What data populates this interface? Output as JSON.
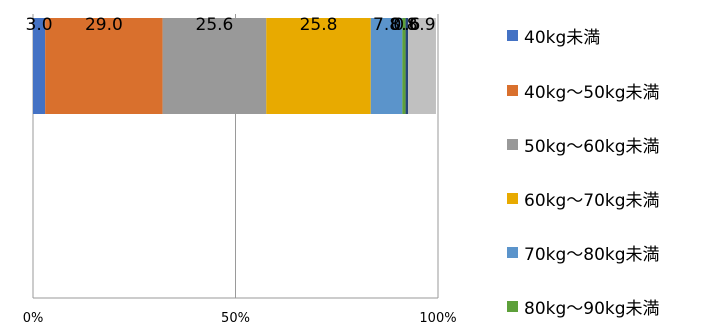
{
  "chart_data": {
    "type": "bar",
    "orientation": "horizontal",
    "stacked": true,
    "percent": true,
    "series": [
      {
        "name": "40kg未満",
        "values": [
          3.0
        ],
        "color": "#4472C4"
      },
      {
        "name": "40kg～50kg未満",
        "values": [
          29.0
        ],
        "color": "#D9702D"
      },
      {
        "name": "50kg～60kg未満",
        "values": [
          25.6
        ],
        "color": "#999999"
      },
      {
        "name": "60kg～70kg未満",
        "values": [
          25.8
        ],
        "color": "#E8AA00"
      },
      {
        "name": "70kg～80kg未満",
        "values": [
          7.8
        ],
        "color": "#5B94CB"
      },
      {
        "name": "80kg～90kg未満",
        "values": [
          0.8
        ],
        "color": "#5DA03A"
      },
      {
        "name": "",
        "values": [
          0.6
        ],
        "color": "#264478"
      },
      {
        "name": "",
        "values": [
          6.9
        ],
        "color": "#C0C0C0"
      }
    ],
    "data_labels": [
      "3.0",
      "29.0",
      "25.6",
      "25.8",
      "7.8",
      "0.8",
      "0.6",
      "6.9"
    ],
    "xlim": [
      0,
      100
    ],
    "x_ticks": [
      "0%",
      "50%",
      "100%"
    ],
    "grid": true,
    "legend_position": "right"
  }
}
